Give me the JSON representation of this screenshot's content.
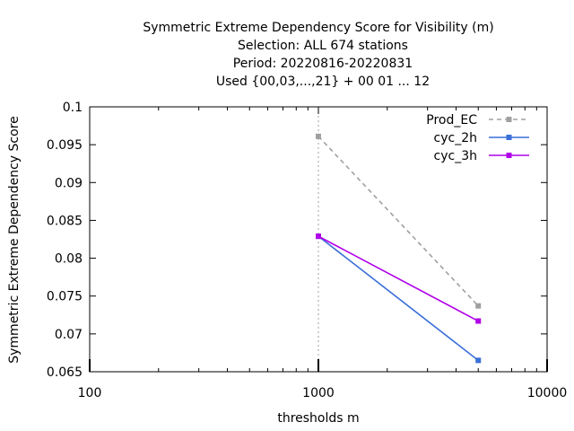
{
  "chart_data": {
    "type": "line",
    "title_lines": [
      "Symmetric Extreme Dependency Score  for Visibility (m)",
      "Selection: ALL    674 stations",
      "Period: 20220816-20220831",
      "Used {00,03,...,21} + 00 01 ... 12"
    ],
    "xlabel": "thresholds m",
    "ylabel": "Symmetric Extreme Dependency Score",
    "x_scale": "log",
    "xlim": [
      100,
      10000
    ],
    "ylim": [
      0.065,
      0.1
    ],
    "x_ticks": [
      100,
      1000,
      10000
    ],
    "x_tick_labels": [
      "100",
      "1000",
      "10000"
    ],
    "y_ticks": [
      0.065,
      0.07,
      0.075,
      0.08,
      0.085,
      0.09,
      0.095,
      0.1
    ],
    "y_tick_labels": [
      "0.065",
      "0.07",
      "0.075",
      "0.08",
      "0.085",
      "0.09",
      "0.095",
      "0.1"
    ],
    "grid": "vertical dotted at x=1000",
    "legend_position": "top-right",
    "series": [
      {
        "name": "Prod_EC",
        "color": "#a0a0a0",
        "dash": "dashed",
        "x": [
          1000,
          5000
        ],
        "y": [
          0.0961,
          0.0737
        ]
      },
      {
        "name": "cyc_2h",
        "color": "#3a6fd8",
        "dash": "solid",
        "x": [
          1000,
          5000
        ],
        "y": [
          0.0829,
          0.0665
        ]
      },
      {
        "name": "cyc_3h",
        "color": "#b000e8",
        "dash": "solid",
        "x": [
          1000,
          5000
        ],
        "y": [
          0.0829,
          0.0717
        ]
      }
    ]
  }
}
